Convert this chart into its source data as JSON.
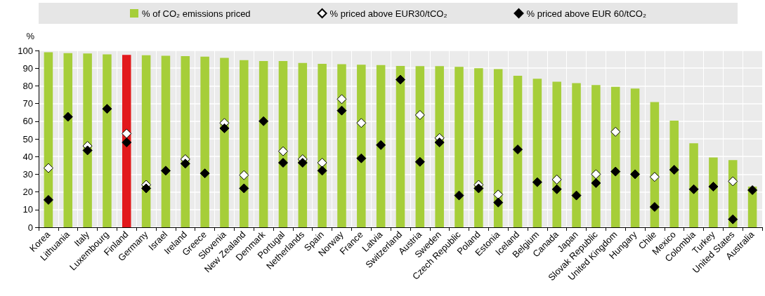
{
  "chart_data": {
    "type": "bar",
    "ylabel": "%",
    "categories": [
      "Korea",
      "Lithuania",
      "Italy",
      "Luxembourg",
      "Finland",
      "Germany",
      "Israel",
      "Ireland",
      "Greece",
      "Slovenia",
      "New Zealand",
      "Denmark",
      "Portugal",
      "Netherlands",
      "Spain",
      "Norway",
      "France",
      "Latvia",
      "Switzerland",
      "Austria",
      "Sweden",
      "Czech Republic",
      "Poland",
      "Estonia",
      "Iceland",
      "Belgium",
      "Canada",
      "Japan",
      "Slovak Republic",
      "United Kingdom",
      "Hungary",
      "Chile",
      "Mexico",
      "Colombia",
      "Turkey",
      "United States",
      "Australia"
    ],
    "series": [
      {
        "name": "% of CO₂ emissions priced",
        "color": "#a6ce39",
        "colors": [
          "#a6ce39",
          "#a6ce39",
          "#a6ce39",
          "#a6ce39",
          "#e2191c",
          "#a6ce39",
          "#a6ce39",
          "#a6ce39",
          "#a6ce39",
          "#a6ce39",
          "#a6ce39",
          "#a6ce39",
          "#a6ce39",
          "#a6ce39",
          "#a6ce39",
          "#a6ce39",
          "#a6ce39",
          "#a6ce39",
          "#a6ce39",
          "#a6ce39",
          "#a6ce39",
          "#a6ce39",
          "#a6ce39",
          "#a6ce39",
          "#a6ce39",
          "#a6ce39",
          "#a6ce39",
          "#a6ce39",
          "#a6ce39",
          "#a6ce39",
          "#a6ce39",
          "#a6ce39",
          "#a6ce39",
          "#a6ce39",
          "#a6ce39",
          "#a6ce39",
          "#a6ce39"
        ],
        "values": [
          99,
          98.5,
          98.3,
          97.8,
          97.5,
          97.3,
          97,
          96.8,
          96.5,
          95.8,
          94.5,
          94,
          94,
          93,
          92.5,
          92.3,
          92,
          91.8,
          91.3,
          91.2,
          91.2,
          90.8,
          90,
          89.5,
          85.7,
          84,
          82.3,
          81.5,
          80.5,
          79.5,
          78.5,
          70.8,
          60.3,
          47.5,
          39.5,
          38,
          23
        ]
      },
      {
        "name": "% priced above EUR30/tCO₂",
        "type": "scatter",
        "color": "#ffffff",
        "x": [
          "Korea",
          "Lithuania",
          "Italy",
          "Luxembourg",
          "Finland",
          "Germany",
          "Israel",
          "Ireland",
          "Greece",
          "Slovenia",
          "New Zealand",
          "Denmark",
          "Portugal",
          "Netherlands",
          "Spain",
          "Norway",
          "France",
          "Latvia",
          "Switzerland",
          "Austria",
          "Sweden",
          "Czech Republic",
          "Poland",
          "Estonia",
          "Iceland",
          "Belgium",
          "Canada",
          "Japan",
          "Slovak Republic",
          "United Kingdom",
          "Hungary",
          "Chile",
          "Mexico",
          "Colombia",
          "Turkey",
          "United States",
          "Australia"
        ],
        "values": [
          33.5,
          null,
          46,
          null,
          53,
          24,
          null,
          38.5,
          null,
          59,
          29.5,
          null,
          43,
          38.5,
          36.5,
          72.5,
          59,
          null,
          null,
          63.5,
          50.5,
          null,
          24,
          18.5,
          null,
          null,
          27,
          null,
          30,
          54,
          null,
          28.5,
          null,
          null,
          null,
          26,
          null
        ]
      },
      {
        "name": "% priced above EUR 60/tCO₂",
        "type": "scatter",
        "color": "#000000",
        "x": [
          "Korea",
          "Lithuania",
          "Italy",
          "Luxembourg",
          "Finland",
          "Germany",
          "Israel",
          "Ireland",
          "Greece",
          "Slovenia",
          "New Zealand",
          "Denmark",
          "Portugal",
          "Netherlands",
          "Spain",
          "Norway",
          "France",
          "Latvia",
          "Switzerland",
          "Austria",
          "Sweden",
          "Czech Republic",
          "Poland",
          "Estonia",
          "Iceland",
          "Belgium",
          "Canada",
          "Japan",
          "Slovak Republic",
          "United Kingdom",
          "Hungary",
          "Chile",
          "Mexico",
          "Colombia",
          "Turkey",
          "United States",
          "Australia"
        ],
        "values": [
          15.5,
          62.5,
          43.5,
          67,
          48,
          22,
          32,
          36,
          30.5,
          56,
          22,
          60,
          36.5,
          36.5,
          32,
          66,
          39,
          46.5,
          83.5,
          37,
          48,
          18,
          22,
          14,
          44,
          25.5,
          21.5,
          18,
          25,
          31.5,
          30,
          11.5,
          32.5,
          21.5,
          23,
          4.5,
          21
        ]
      }
    ],
    "ylim": [
      0,
      100
    ],
    "yticks": [
      0,
      10,
      20,
      30,
      40,
      50,
      60,
      70,
      80,
      90,
      100
    ],
    "grid": true,
    "legend": "top",
    "marker": "diamond"
  }
}
